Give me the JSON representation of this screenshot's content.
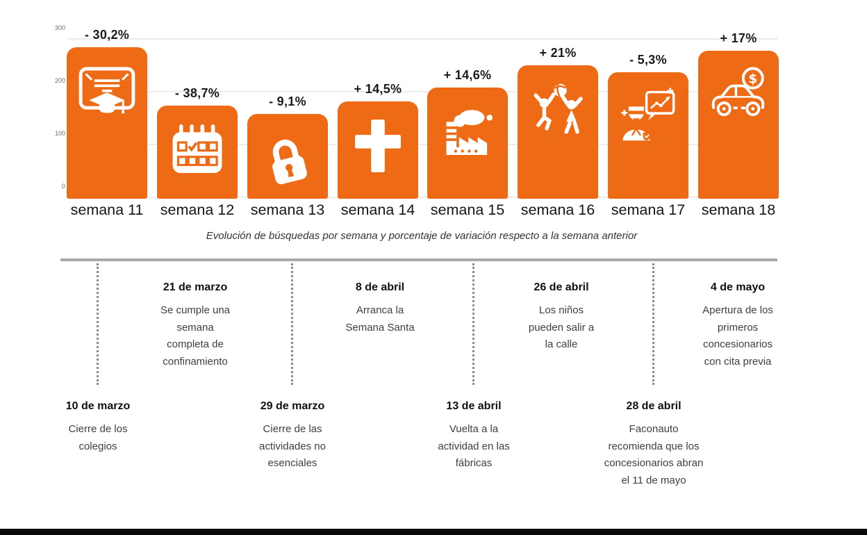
{
  "colors": {
    "accent": "#EE6A14",
    "grid": "#ECECEC",
    "timeline_bar": "#A9A9A9",
    "dotted_line": "#8A8A8A",
    "text_dark": "#1B1B1B",
    "text_body": "#3E3E3E",
    "bottom_bar": "#0A0A0A"
  },
  "chart_data": {
    "type": "bar",
    "title": "",
    "caption": "Evolución de búsquedas por semana y porcentaje de variación respecto a la semana anterior",
    "categories": [
      "semana 11",
      "semana 12",
      "semana 13",
      "semana 14",
      "semana 15",
      "semana 16",
      "semana 17",
      "semana 18"
    ],
    "values": [
      283,
      173,
      157,
      180,
      206,
      249,
      236,
      276
    ],
    "change_labels": [
      "- 30,2%",
      "- 38,7%",
      "- 9,1%",
      "+ 14,5%",
      "+ 14,6%",
      "+ 21%",
      "- 5,3%",
      "+ 17%"
    ],
    "icons": [
      "diploma-icon",
      "calendar-icon",
      "padlock-icon",
      "cross-icon",
      "factory-icon",
      "children-playing-icon",
      "person-chart-icon",
      "car-money-icon"
    ],
    "xlabel": "",
    "ylabel": "",
    "ylim": [
      0,
      300
    ],
    "yticks": [
      0,
      100,
      200,
      300
    ],
    "grid": true,
    "legend": false,
    "bar_color": "#EE6A14"
  },
  "timeline": {
    "top_events": [
      {
        "date": "21 de marzo",
        "text": "Se cumple una\nsemana\ncompleta de\nconfinamiento"
      },
      {
        "date": "8 de abril",
        "text": "Arranca la\nSemana Santa"
      },
      {
        "date": "26 de abril",
        "text": "Los niños\npueden salir a\nla calle"
      },
      {
        "date": "4 de mayo",
        "text": "Apertura de los\nprimeros\nconcesionarios\ncon cita previa"
      }
    ],
    "bottom_events": [
      {
        "date": "10 de marzo",
        "text": "Cierre de los\ncolegios"
      },
      {
        "date": "29 de marzo",
        "text": "Cierre de las\nactividades no\nesenciales"
      },
      {
        "date": "13 de abril",
        "text": "Vuelta a la\nactividad en las\nfábricas"
      },
      {
        "date": "28 de abril",
        "text": "Faconauto\nrecomienda que los\nconcesionarios abran\nel 11 de mayo"
      }
    ]
  }
}
